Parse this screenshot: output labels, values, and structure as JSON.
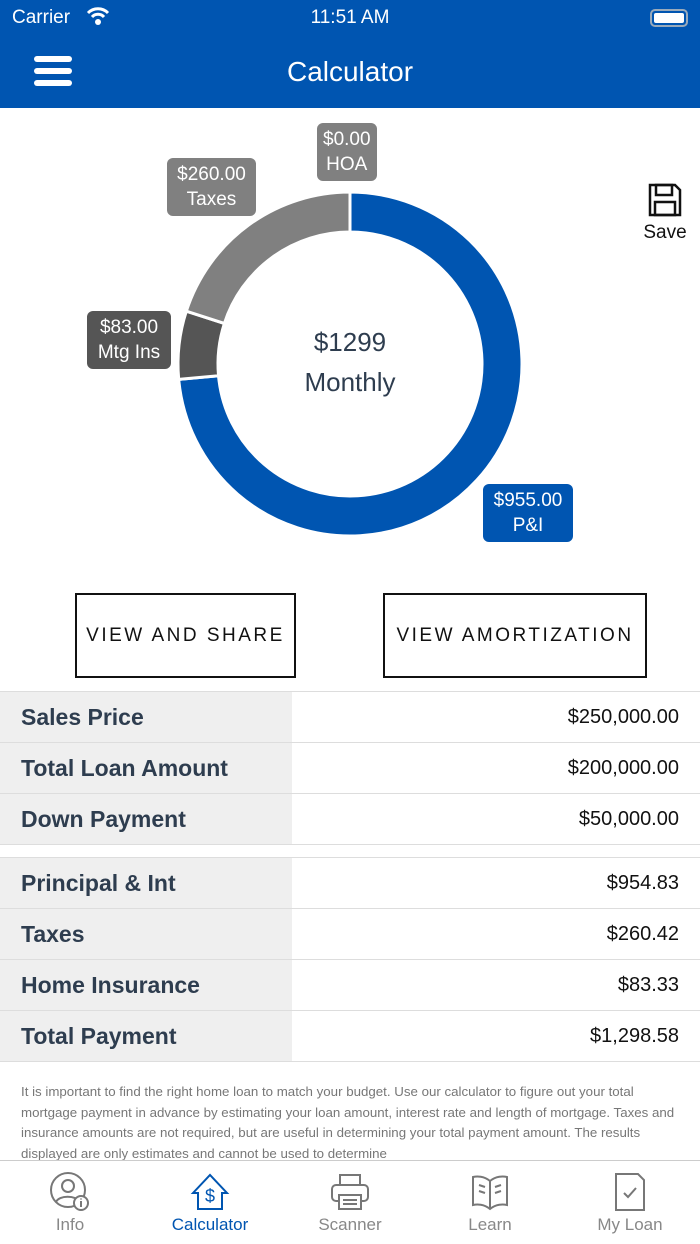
{
  "status": {
    "carrier": "Carrier",
    "time": "11:51 AM"
  },
  "header": {
    "title": "Calculator"
  },
  "chart_data": {
    "type": "pie",
    "donut": true,
    "center_value": "$1299",
    "center_label": "Monthly",
    "slices": [
      {
        "label": "P&I",
        "value": 955.0,
        "display": "$955.00",
        "color": "#0055b1"
      },
      {
        "label": "Mtg Ins",
        "value": 83.0,
        "display": "$83.00",
        "color": "#555555"
      },
      {
        "label": "Taxes",
        "value": 260.0,
        "display": "$260.00",
        "color": "#808080"
      },
      {
        "label": "HOA",
        "value": 0.0,
        "display": "$0.00",
        "color": "#808080"
      }
    ]
  },
  "save_label": "Save",
  "buttons": {
    "share": "VIEW AND SHARE",
    "amort": "VIEW AMORTIZATION"
  },
  "loan": [
    {
      "k": "Sales Price",
      "v": "$250,000.00"
    },
    {
      "k": "Total Loan Amount",
      "v": "$200,000.00"
    },
    {
      "k": "Down Payment",
      "v": "$50,000.00"
    }
  ],
  "payment": [
    {
      "k": "Principal & Int",
      "v": "$954.83"
    },
    {
      "k": "Taxes",
      "v": "$260.42"
    },
    {
      "k": "Home Insurance",
      "v": "$83.33"
    },
    {
      "k": "Total Payment",
      "v": "$1,298.58"
    }
  ],
  "note": "It is important to find the right home loan to match your budget. Use our calculator to figure out your total mortgage payment in advance by estimating your loan amount, interest rate and length of mortgage. Taxes and insurance amounts are not required, but are useful in determining your total payment amount. The results displayed are only estimates and cannot be used to determine",
  "tabs": [
    {
      "label": "Info"
    },
    {
      "label": "Calculator",
      "active": true
    },
    {
      "label": "Scanner"
    },
    {
      "label": "Learn"
    },
    {
      "label": "My Loan"
    }
  ]
}
